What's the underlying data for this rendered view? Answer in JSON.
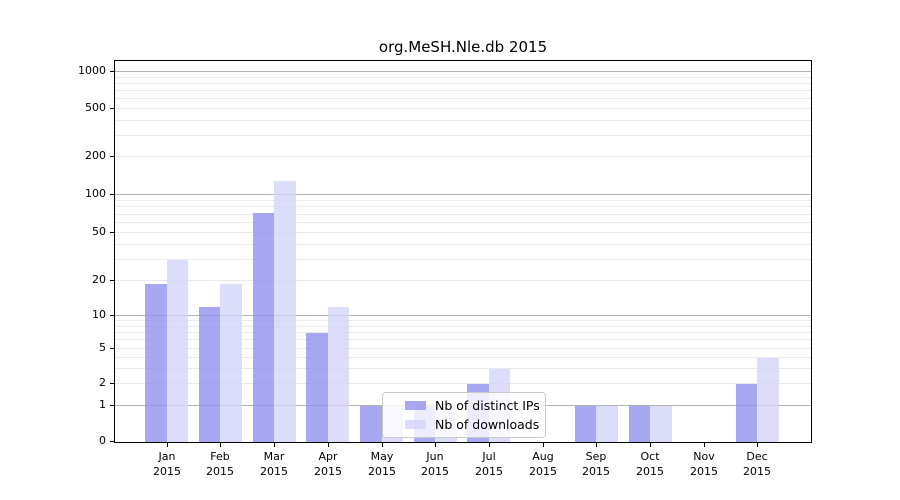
{
  "figure": {
    "title": "org.MeSH.Nle.db 2015"
  },
  "chart_data": {
    "type": "bar",
    "title": "org.MeSH.Nle.db 2015",
    "xlabel": "",
    "ylabel": "",
    "categories": [
      {
        "month": "Jan",
        "year": "2015"
      },
      {
        "month": "Feb",
        "year": "2015"
      },
      {
        "month": "Mar",
        "year": "2015"
      },
      {
        "month": "Apr",
        "year": "2015"
      },
      {
        "month": "May",
        "year": "2015"
      },
      {
        "month": "Jun",
        "year": "2015"
      },
      {
        "month": "Jul",
        "year": "2015"
      },
      {
        "month": "Aug",
        "year": "2015"
      },
      {
        "month": "Sep",
        "year": "2015"
      },
      {
        "month": "Oct",
        "year": "2015"
      },
      {
        "month": "Nov",
        "year": "2015"
      },
      {
        "month": "Dec",
        "year": "2015"
      }
    ],
    "series": [
      {
        "name": "Nb of distinct IPs",
        "color": "#9191ef",
        "fill_opacity": 0.8,
        "values": [
          19,
          12,
          72,
          7,
          1,
          1,
          2,
          0,
          1,
          1,
          0,
          2
        ]
      },
      {
        "name": "Nb of downloads",
        "color": "#d3d3fa",
        "fill_opacity": 0.8,
        "values": [
          30,
          19,
          130,
          12,
          1,
          1,
          3,
          0,
          1,
          1,
          0,
          4
        ]
      }
    ],
    "yscale": "log (with 0 baseline)",
    "yticks": [
      0,
      1,
      2,
      5,
      10,
      20,
      50,
      100,
      200,
      500,
      1000
    ],
    "ylim": [
      0,
      1300
    ],
    "grid": true,
    "legend_position": "inside lower-center",
    "colors": {
      "grid_major": "#b2b2b2",
      "grid_minor": "#e9e9e9",
      "spine": "#000000",
      "text": "#000000",
      "background": "#ffffff"
    }
  }
}
